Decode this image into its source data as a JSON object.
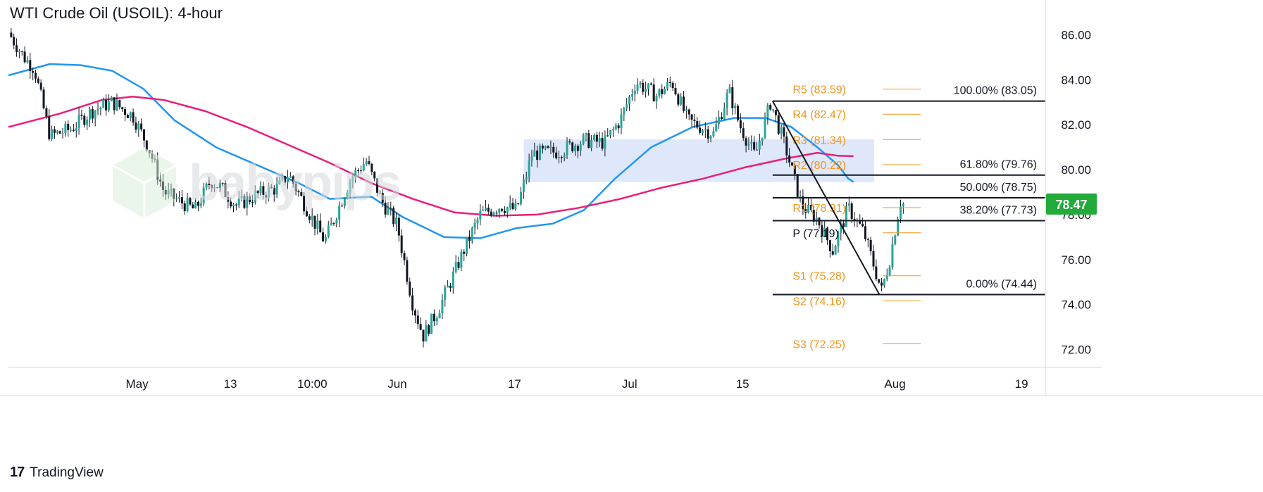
{
  "title": "WTI Crude Oil (USOIL): 4-hour",
  "watermark": "babypips",
  "branding": "TradingView",
  "brand_icon": "tradingview-logo-icon",
  "colors": {
    "price_up": "#26a69a",
    "price_down": "#131722",
    "ma_fast": "#2196f3",
    "ma_slow": "#e91e7a",
    "pivot": "#f0961e",
    "zone": "#dce4fa",
    "current_price_badge": "#22ab3a",
    "fib": "#131722"
  },
  "chart_data": {
    "type": "candlestick",
    "title": "WTI Crude Oil (USOIL): 4-hour",
    "y_ticks": [
      "86.00",
      "84.00",
      "82.00",
      "80.00",
      "78.00",
      "76.00",
      "74.00",
      "72.00"
    ],
    "ylim": [
      71.2,
      87.3
    ],
    "x_ticks": [
      {
        "label": "May",
        "t": 0.124
      },
      {
        "label": "13",
        "t": 0.214
      },
      {
        "label": "10:00",
        "t": 0.293
      },
      {
        "label": "Jun",
        "t": 0.375
      },
      {
        "label": "17",
        "t": 0.488
      },
      {
        "label": "Jul",
        "t": 0.599
      },
      {
        "label": "15",
        "t": 0.708
      },
      {
        "label": "Aug",
        "t": 0.855
      },
      {
        "label": "19",
        "t": 0.977
      }
    ],
    "current_price": "78.47",
    "price_path": [
      [
        0.0,
        86.1
      ],
      [
        0.015,
        85.0
      ],
      [
        0.025,
        84.5
      ],
      [
        0.04,
        81.5
      ],
      [
        0.06,
        81.8
      ],
      [
        0.08,
        82.6
      ],
      [
        0.1,
        83.0
      ],
      [
        0.12,
        82.4
      ],
      [
        0.135,
        81.0
      ],
      [
        0.15,
        79.0
      ],
      [
        0.165,
        78.6
      ],
      [
        0.18,
        78.2
      ],
      [
        0.195,
        79.5
      ],
      [
        0.205,
        79.2
      ],
      [
        0.22,
        78.4
      ],
      [
        0.24,
        78.9
      ],
      [
        0.26,
        79.2
      ],
      [
        0.27,
        79.8
      ],
      [
        0.285,
        78.5
      ],
      [
        0.305,
        76.8
      ],
      [
        0.33,
        79.6
      ],
      [
        0.345,
        80.4
      ],
      [
        0.36,
        78.6
      ],
      [
        0.375,
        77.5
      ],
      [
        0.39,
        74.0
      ],
      [
        0.4,
        72.6
      ],
      [
        0.415,
        73.8
      ],
      [
        0.43,
        75.4
      ],
      [
        0.44,
        76.5
      ],
      [
        0.455,
        78.0
      ],
      [
        0.475,
        78.4
      ],
      [
        0.49,
        78.2
      ],
      [
        0.505,
        80.7
      ],
      [
        0.53,
        80.8
      ],
      [
        0.555,
        81.3
      ],
      [
        0.575,
        81.2
      ],
      [
        0.59,
        82.2
      ],
      [
        0.605,
        83.9
      ],
      [
        0.625,
        83.3
      ],
      [
        0.64,
        83.9
      ],
      [
        0.655,
        82.2
      ],
      [
        0.68,
        81.6
      ],
      [
        0.695,
        83.5
      ],
      [
        0.705,
        82.0
      ],
      [
        0.72,
        80.6
      ],
      [
        0.735,
        83.0
      ],
      [
        0.75,
        80.9
      ],
      [
        0.765,
        78.4
      ],
      [
        0.78,
        77.8
      ],
      [
        0.795,
        76.4
      ],
      [
        0.81,
        78.3
      ],
      [
        0.825,
        77.2
      ],
      [
        0.842,
        74.6
      ],
      [
        0.85,
        76.0
      ],
      [
        0.86,
        78.6
      ],
      [
        0.863,
        78.47
      ]
    ],
    "series": [
      {
        "name": "",
        "color": "#2196f3",
        "values": [
          [
            0.0,
            84.2
          ],
          [
            0.04,
            84.7
          ],
          [
            0.07,
            84.65
          ],
          [
            0.1,
            84.4
          ],
          [
            0.13,
            83.6
          ],
          [
            0.16,
            82.2
          ],
          [
            0.2,
            81.0
          ],
          [
            0.24,
            80.2
          ],
          [
            0.28,
            79.4
          ],
          [
            0.31,
            78.7
          ],
          [
            0.35,
            78.8
          ],
          [
            0.38,
            77.9
          ],
          [
            0.42,
            77.0
          ],
          [
            0.455,
            76.95
          ],
          [
            0.49,
            77.4
          ],
          [
            0.525,
            77.6
          ],
          [
            0.555,
            78.2
          ],
          [
            0.585,
            79.6
          ],
          [
            0.62,
            81.0
          ],
          [
            0.66,
            81.9
          ],
          [
            0.7,
            82.3
          ],
          [
            0.73,
            82.3
          ],
          [
            0.755,
            81.9
          ],
          [
            0.78,
            81.0
          ],
          [
            0.8,
            80.2
          ],
          [
            0.81,
            79.6
          ],
          [
            0.815,
            79.45
          ]
        ]
      },
      {
        "name": "",
        "color": "#e91e7a",
        "values": [
          [
            0.0,
            81.9
          ],
          [
            0.05,
            82.5
          ],
          [
            0.09,
            83.1
          ],
          [
            0.12,
            83.25
          ],
          [
            0.15,
            83.1
          ],
          [
            0.19,
            82.6
          ],
          [
            0.23,
            81.9
          ],
          [
            0.27,
            81.1
          ],
          [
            0.31,
            80.3
          ],
          [
            0.35,
            79.4
          ],
          [
            0.39,
            78.7
          ],
          [
            0.43,
            78.1
          ],
          [
            0.47,
            77.95
          ],
          [
            0.51,
            78.0
          ],
          [
            0.55,
            78.3
          ],
          [
            0.59,
            78.7
          ],
          [
            0.63,
            79.2
          ],
          [
            0.67,
            79.6
          ],
          [
            0.71,
            80.1
          ],
          [
            0.75,
            80.5
          ],
          [
            0.78,
            80.75
          ],
          [
            0.8,
            80.62
          ],
          [
            0.815,
            80.6
          ]
        ]
      }
    ],
    "resistance_zone": {
      "t_start": 0.497,
      "t_end": 0.835,
      "y_low": 79.45,
      "y_high": 81.35
    },
    "pivots": [
      {
        "label": "R5 (83.59)",
        "value": 83.59
      },
      {
        "label": "R4 (82.47)",
        "value": 82.47
      },
      {
        "label": "R3 (81.34)",
        "value": 81.34
      },
      {
        "label": "R2 (80.22)",
        "value": 80.22
      },
      {
        "label": "R1 (78.31)",
        "value": 78.31
      },
      {
        "label": "P (77.19)",
        "value": 77.19
      },
      {
        "label": "S1 (75.28)",
        "value": 75.28
      },
      {
        "label": "S2 (74.16)",
        "value": 74.16
      },
      {
        "label": "S3 (72.25)",
        "value": 72.25
      }
    ],
    "pivot_span": {
      "t_start": 0.755,
      "t_end": 0.88
    },
    "fibonacci": [
      {
        "label": "100.00% (83.05)",
        "value": 83.05
      },
      {
        "label": "61.80% (79.76)",
        "value": 79.76
      },
      {
        "label": "50.00% (78.75)",
        "value": 78.75
      },
      {
        "label": "38.20% (77.73)",
        "value": 77.73
      },
      {
        "label": "0.00% (74.44)",
        "value": 74.44
      }
    ],
    "fib_span": {
      "t_start": 0.737,
      "t_end": 1.0
    },
    "fib_trend_line": {
      "t_start": 0.737,
      "y_start": 83.05,
      "t_end": 0.84,
      "y_end": 74.44
    }
  }
}
